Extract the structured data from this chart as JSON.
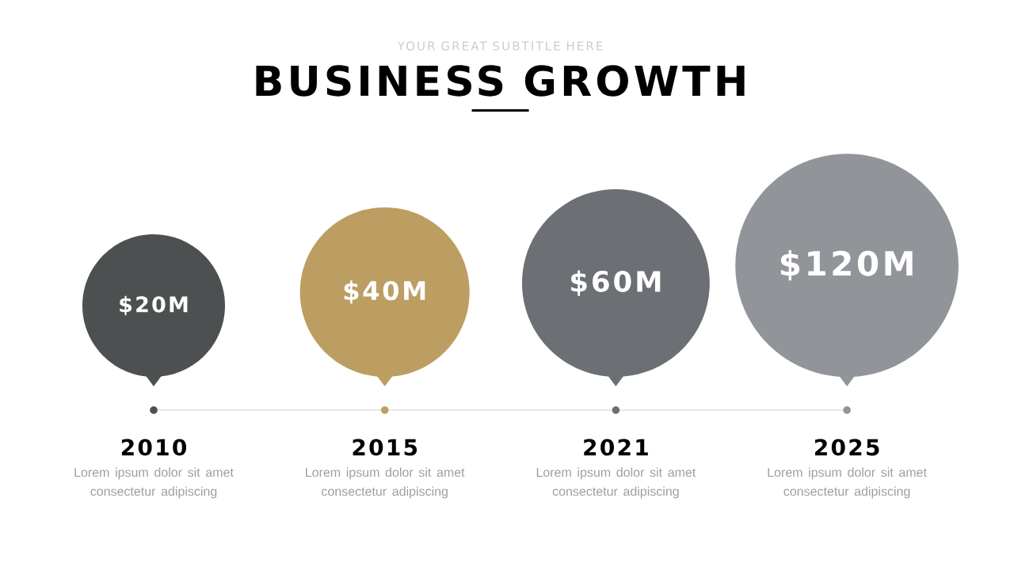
{
  "chart_data": {
    "type": "other",
    "title": "BUSINESS GROWTH",
    "subtitle": "YOUR GREAT SUBTITLE HERE",
    "categories": [
      "2010",
      "2015",
      "2021",
      "2025"
    ],
    "values": [
      20,
      40,
      60,
      120
    ],
    "value_labels": [
      "$20M",
      "$40M",
      "$60M",
      "$120M"
    ],
    "colors": [
      "#4d5051",
      "#bc9e62",
      "#6c7074",
      "#91959a"
    ],
    "annotations": [
      "Lorem ipsum dolor sit amet consectetur adipiscing",
      "Lorem ipsum dolor sit amet consectetur adipiscing",
      "Lorem ipsum dolor sit amet consectetur adipiscing",
      "Lorem ipsum dolor sit amet consectetur adipiscing"
    ]
  }
}
